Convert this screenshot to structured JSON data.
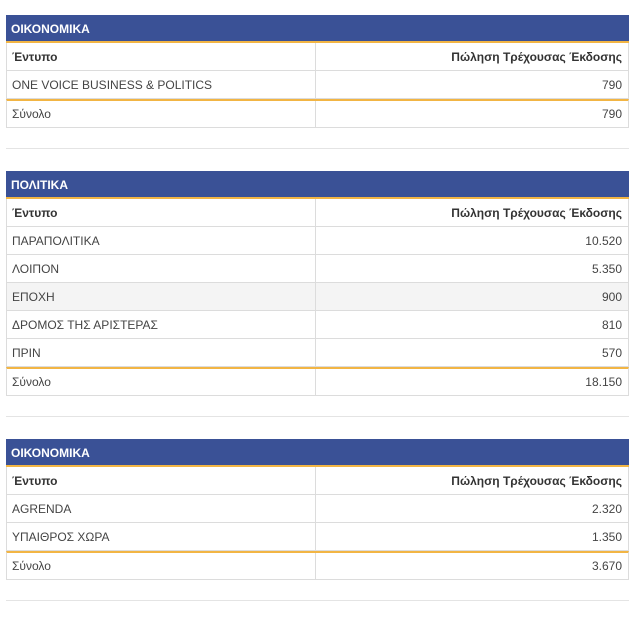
{
  "tables": [
    {
      "title": "ΟΙΚΟΝΟΜΙΚΑ",
      "col_name": "Έντυπο",
      "col_value": "Πώληση Τρέχουσας Έκδοσης",
      "rows": [
        {
          "name": "ONE VOICE BUSINESS & POLITICS",
          "value": "790"
        }
      ],
      "total_label": "Σύνολο",
      "total_value": "790"
    },
    {
      "title": "ΠΟΛΙΤΙΚΑ",
      "col_name": "Έντυπο",
      "col_value": "Πώληση Τρέχουσας Έκδοσης",
      "rows": [
        {
          "name": "ΠΑΡΑΠΟΛΙΤΙΚΑ",
          "value": "10.520"
        },
        {
          "name": "ΛΟΙΠΟΝ",
          "value": "5.350"
        },
        {
          "name": "ΕΠΟΧΗ",
          "value": "900"
        },
        {
          "name": "ΔΡΟΜΟΣ ΤΗΣ ΑΡΙΣΤΕΡΑΣ",
          "value": "810"
        },
        {
          "name": "ΠΡΙΝ",
          "value": "570"
        }
      ],
      "total_label": "Σύνολο",
      "total_value": "18.150"
    },
    {
      "title": "ΟΙΚΟΝΟΜΙΚΑ",
      "col_name": "Έντυπο",
      "col_value": "Πώληση Τρέχουσας Έκδοσης",
      "rows": [
        {
          "name": "AGRENDA",
          "value": "2.320"
        },
        {
          "name": "ΥΠΑΙΘΡΟΣ ΧΩΡΑ",
          "value": "1.350"
        }
      ],
      "total_label": "Σύνολο",
      "total_value": "3.670"
    }
  ]
}
